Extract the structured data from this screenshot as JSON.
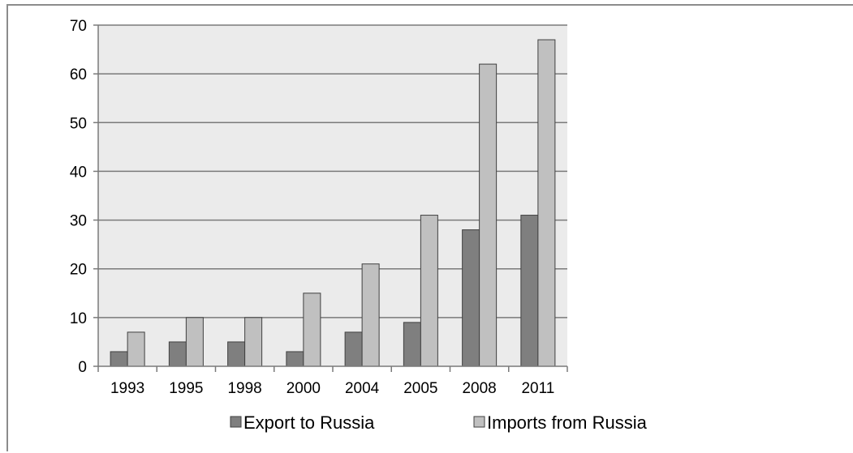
{
  "chart_data": {
    "type": "bar",
    "categories": [
      "1993",
      "1995",
      "1998",
      "2000",
      "2004",
      "2005",
      "2008",
      "2011"
    ],
    "series": [
      {
        "name": "Export to Russia",
        "values": [
          3,
          5,
          5,
          3,
          7,
          9,
          28,
          31
        ],
        "color": "#7f7f7f"
      },
      {
        "name": "Imports from Russia",
        "values": [
          7,
          10,
          10,
          15,
          21,
          31,
          62,
          67
        ],
        "color": "#c0c0c0"
      }
    ],
    "ylim": [
      0,
      70
    ],
    "yticks": [
      "0",
      "10",
      "20",
      "30",
      "40",
      "50",
      "60",
      "70"
    ],
    "grid": true,
    "legend_position": "bottom",
    "plot_background": "#ebebeb",
    "bar_outline": "#404040"
  }
}
